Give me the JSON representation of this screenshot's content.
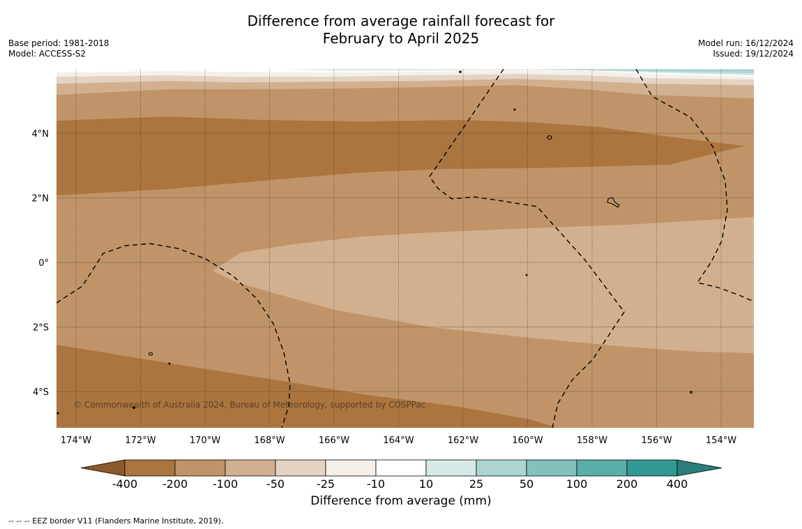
{
  "title": {
    "line1": "Difference from average rainfall forecast for",
    "line2": "February to April 2025"
  },
  "meta_left": {
    "base_period": "Base period: 1981-2018",
    "model": "Model: ACCESS-S2"
  },
  "meta_right": {
    "model_run": "Model run: 16/12/2024",
    "issued": "Issued: 19/12/2024"
  },
  "map": {
    "lat_labels": [
      "4°N",
      "2°N",
      "0°",
      "2°S",
      "4°S"
    ],
    "lat_values": [
      4,
      2,
      0,
      -2,
      -4
    ],
    "lon_labels": [
      "174°W",
      "172°W",
      "170°W",
      "168°W",
      "166°W",
      "164°W",
      "162°W",
      "160°W",
      "158°W",
      "156°W",
      "154°W"
    ],
    "lon_values": [
      -174,
      -172,
      -170,
      -168,
      -166,
      -164,
      -162,
      -160,
      -158,
      -156,
      -154
    ],
    "copyright": "© Commonwealth of Australia 2024, Bureau of Meteorology, supported by COSPPac"
  },
  "colorbar": {
    "title": "Difference from average (mm)",
    "tick_labels": [
      "-400",
      "-200",
      "-100",
      "-50",
      "-25",
      "-10",
      "10",
      "25",
      "50",
      "100",
      "200",
      "400"
    ],
    "colors": [
      "#8b5a2b",
      "#ab753f",
      "#c09468",
      "#d2b08f",
      "#e4d3c3",
      "#f4efe9",
      "#ffffff",
      "#d6e9e7",
      "#acd5d2",
      "#83c1bd",
      "#5aaeaa",
      "#339894",
      "#2a7e7b"
    ],
    "color_labels": [
      "below -400",
      "-400 to -200",
      "-200 to -100",
      "-100 to -50",
      "-50 to -25",
      "-25 to -10",
      "-10 to 10",
      "10 to 25",
      "25 to 50",
      "50 to 100",
      "100 to 200",
      "200 to 400",
      "above 400"
    ]
  },
  "footer": {
    "eez_note": "--  --  -- EEZ border V11 (Flanders Marine Institute, 2019)."
  }
}
